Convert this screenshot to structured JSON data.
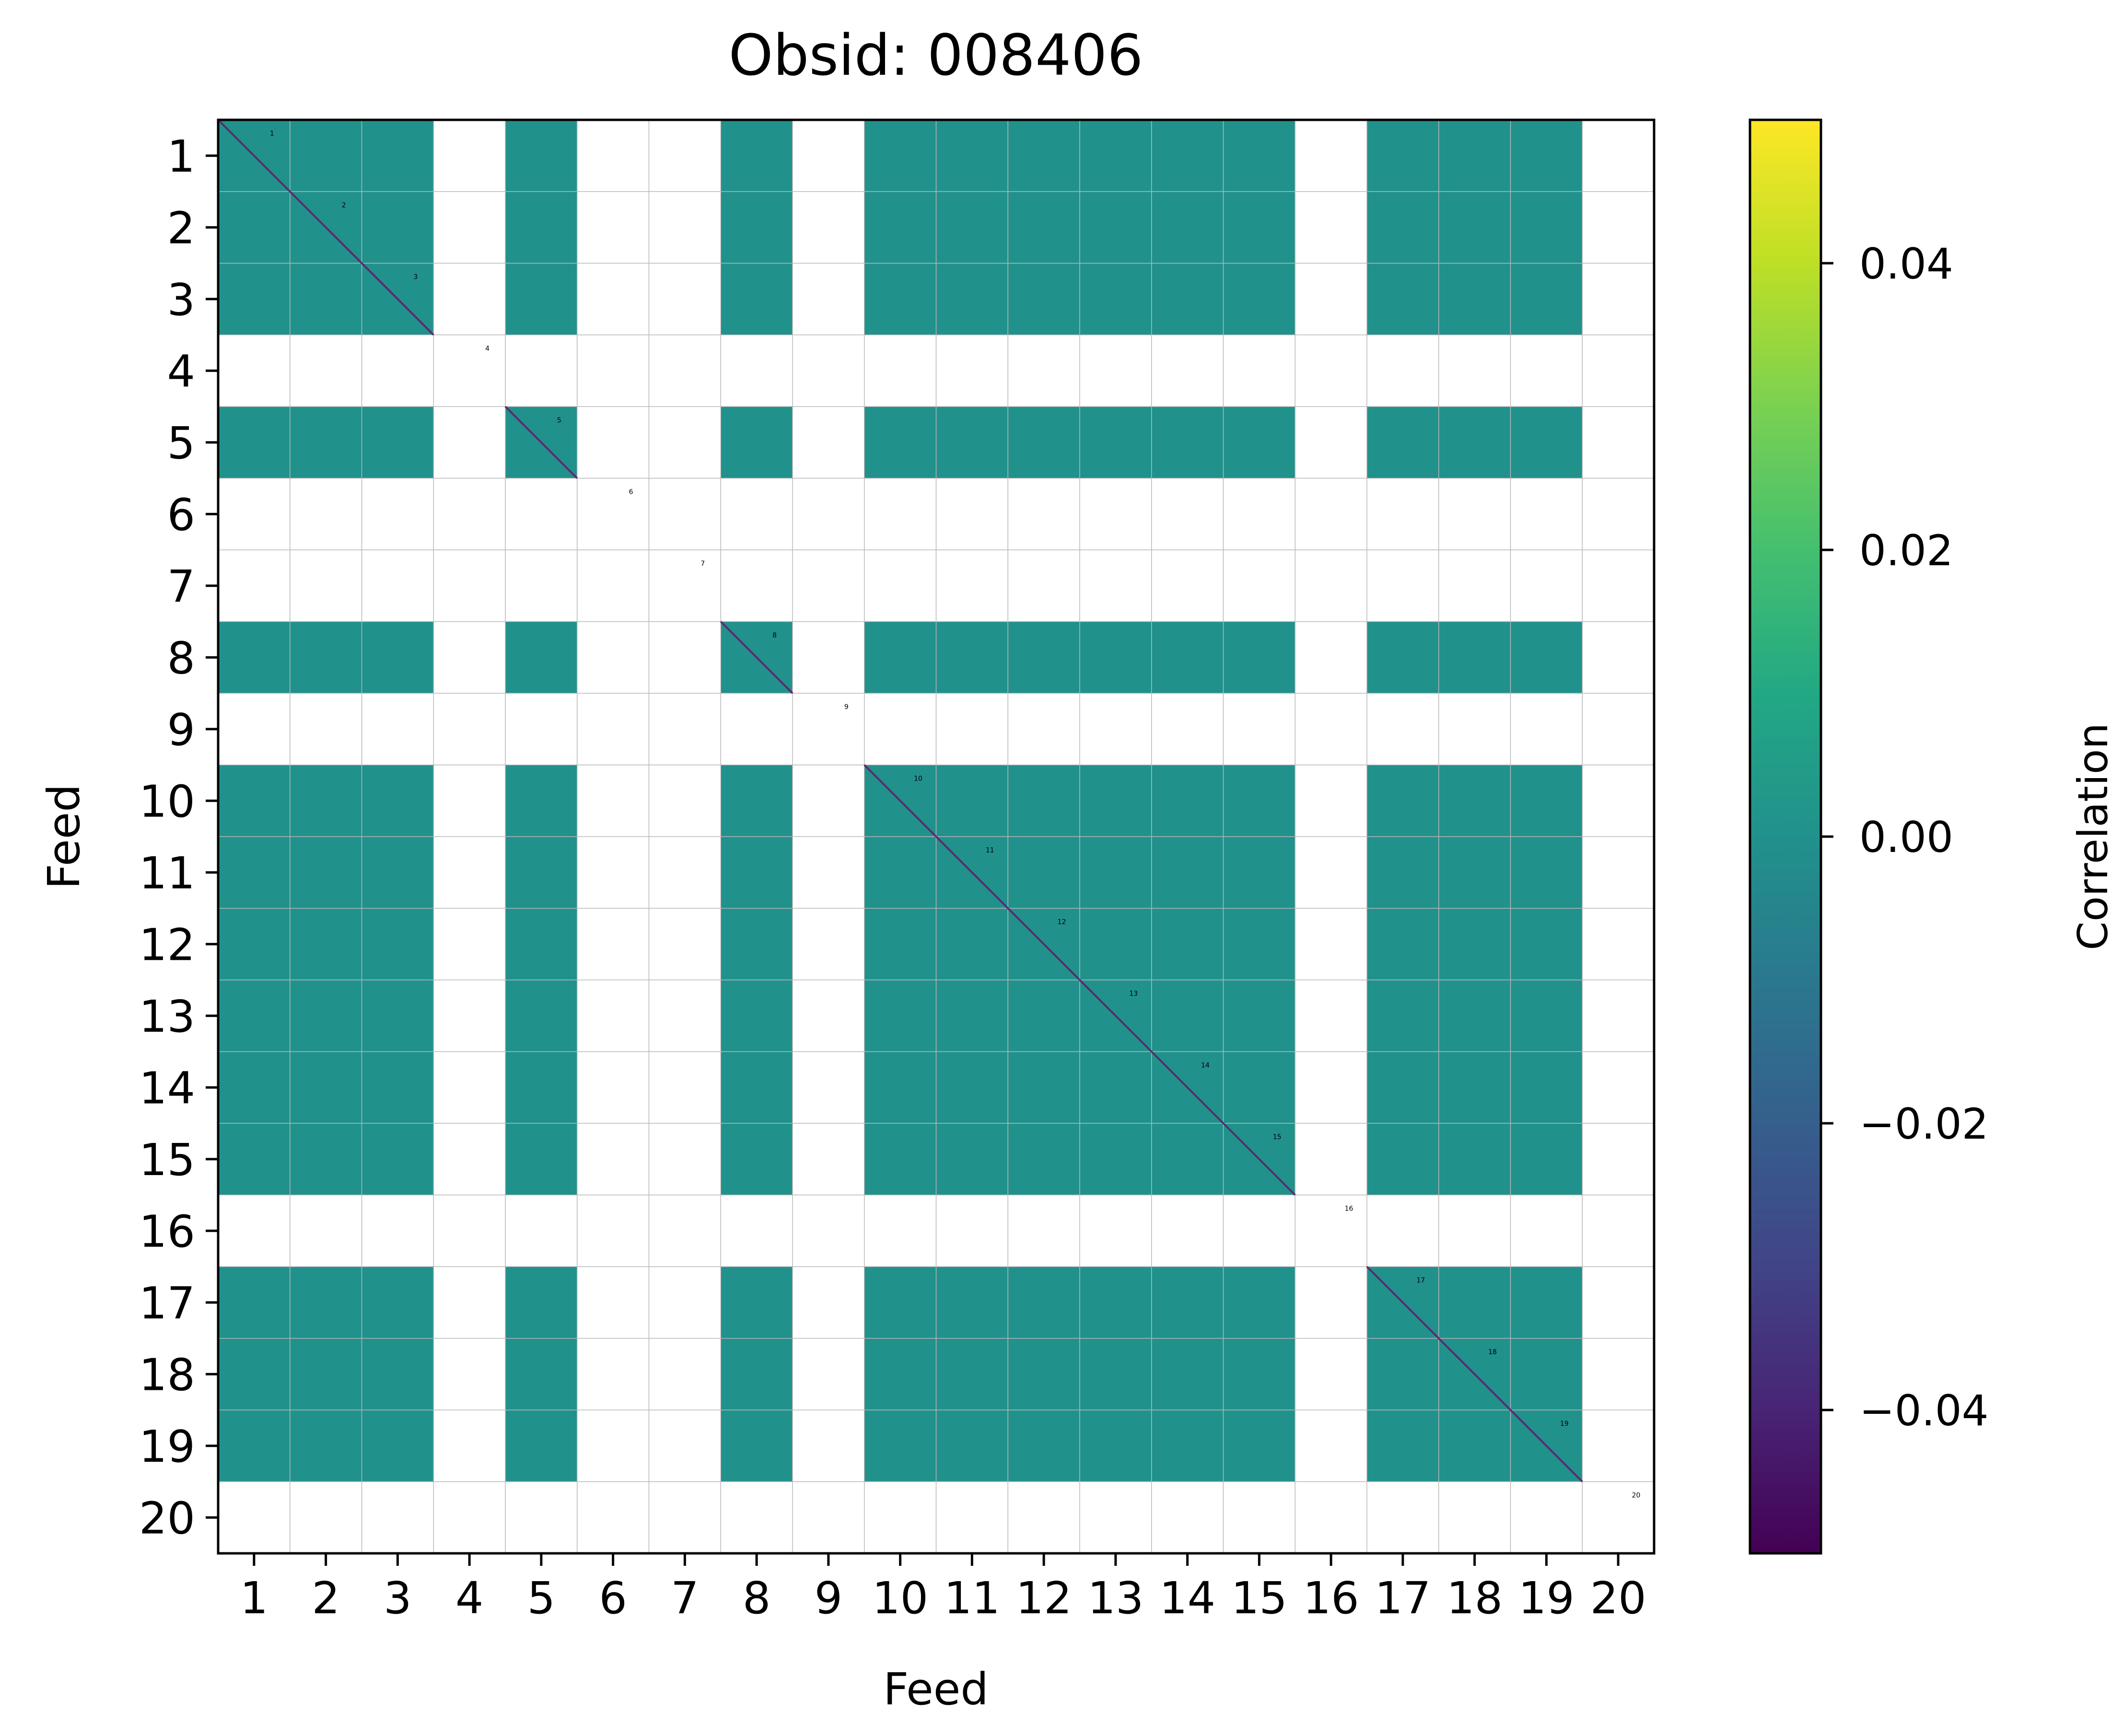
{
  "chart_data": {
    "type": "heatmap",
    "title": "Obsid: 008406",
    "xlabel": "Feed",
    "ylabel": "Feed",
    "x_ticks": [
      "1",
      "2",
      "3",
      "4",
      "5",
      "6",
      "7",
      "8",
      "9",
      "10",
      "11",
      "12",
      "13",
      "14",
      "15",
      "16",
      "17",
      "18",
      "19",
      "20"
    ],
    "y_ticks": [
      "1",
      "2",
      "3",
      "4",
      "5",
      "6",
      "7",
      "8",
      "9",
      "10",
      "11",
      "12",
      "13",
      "14",
      "15",
      "16",
      "17",
      "18",
      "19",
      "20"
    ],
    "feed_labels": [
      "1",
      "2",
      "3",
      "4",
      "5",
      "6",
      "7",
      "8",
      "9",
      "10",
      "11",
      "12",
      "13",
      "14",
      "15",
      "16",
      "17",
      "18",
      "19",
      "20"
    ],
    "active_feeds": [
      1,
      2,
      3,
      5,
      8,
      10,
      11,
      12,
      13,
      14,
      15,
      17,
      18,
      19
    ],
    "inactive_feeds": [
      4,
      6,
      7,
      16,
      20
    ],
    "off_diagonal_correlation": 0.0,
    "diagonal_correlation": -0.05,
    "colorbar": {
      "label": "Correlation",
      "range": [
        -0.05,
        0.05
      ],
      "ticks": [
        "−0.04",
        "−0.02",
        "0.00",
        "0.02",
        "0.04"
      ],
      "tick_values": [
        -0.04,
        -0.02,
        0.0,
        0.02,
        0.04
      ],
      "colormap": "viridis"
    },
    "colors": {
      "matrix_fill": "#21918c",
      "diagonal": "#5b2a6e",
      "grid": "#b8b8b8",
      "background": "#ffffff"
    }
  }
}
